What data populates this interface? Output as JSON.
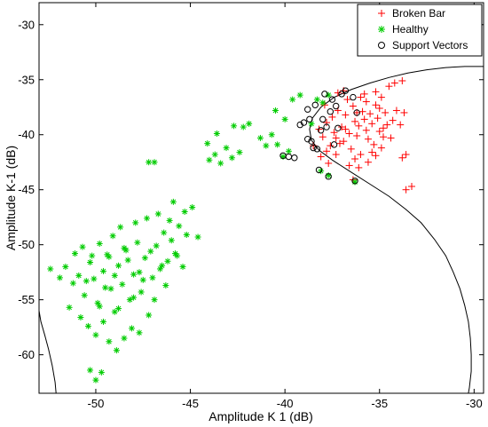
{
  "chart_data": {
    "type": "scatter",
    "title": "",
    "xlabel": "Amplitude K 1 (dB)",
    "ylabel": "Amplitude K-1 (dB)",
    "xlim": [
      -53,
      -29.5
    ],
    "ylim": [
      -63.5,
      -28
    ],
    "xticks": [
      -50,
      -45,
      -40,
      -35,
      -30
    ],
    "yticks": [
      -30,
      -35,
      -40,
      -45,
      -50,
      -55,
      -60
    ],
    "xtick_labels": [
      "-50",
      "-45",
      "-40",
      "-35",
      "-30"
    ],
    "ytick_labels": [
      "-30",
      "-35",
      "-40",
      "-45",
      "-50",
      "-55",
      "-60"
    ],
    "grid": false,
    "legend": {
      "position": "top-right",
      "entries": [
        "Broken Bar",
        "Healthy",
        "Support Vectors"
      ]
    },
    "series": [
      {
        "name": "Broken Bar",
        "marker": "plus",
        "color": "#ff0000",
        "points": [
          [
            -38.2,
            -39.5
          ],
          [
            -38.0,
            -40.2
          ],
          [
            -37.8,
            -38.9
          ],
          [
            -37.6,
            -41.0
          ],
          [
            -37.4,
            -39.8
          ],
          [
            -37.2,
            -37.8
          ],
          [
            -37.0,
            -39.3
          ],
          [
            -36.9,
            -40.6
          ],
          [
            -36.8,
            -38.2
          ],
          [
            -36.6,
            -39.9
          ],
          [
            -36.5,
            -41.3
          ],
          [
            -36.4,
            -37.4
          ],
          [
            -36.3,
            -38.8
          ],
          [
            -36.2,
            -40.1
          ],
          [
            -36.1,
            -39.2
          ],
          [
            -36.0,
            -41.8
          ],
          [
            -35.9,
            -37.9
          ],
          [
            -35.8,
            -38.6
          ],
          [
            -35.7,
            -39.6
          ],
          [
            -35.6,
            -40.4
          ],
          [
            -35.5,
            -38.1
          ],
          [
            -35.4,
            -39.0
          ],
          [
            -35.3,
            -40.9
          ],
          [
            -35.2,
            -37.3
          ],
          [
            -35.1,
            -38.5
          ],
          [
            -35.0,
            -39.7
          ],
          [
            -34.9,
            -36.6
          ],
          [
            -34.8,
            -40.2
          ],
          [
            -34.7,
            -38.0
          ],
          [
            -34.6,
            -39.1
          ],
          [
            -37.9,
            -37.3
          ],
          [
            -37.5,
            -38.4
          ],
          [
            -37.1,
            -40.8
          ],
          [
            -36.7,
            -36.8
          ],
          [
            -36.3,
            -42.2
          ],
          [
            -35.8,
            -36.3
          ],
          [
            -35.4,
            -41.6
          ],
          [
            -35.0,
            -37.6
          ],
          [
            -34.5,
            -35.6
          ],
          [
            -34.2,
            -35.3
          ],
          [
            -33.8,
            -35.1
          ],
          [
            -34.1,
            -37.8
          ],
          [
            -33.7,
            -38.0
          ],
          [
            -33.9,
            -39.1
          ],
          [
            -33.6,
            -41.8
          ],
          [
            -33.8,
            -42.1
          ],
          [
            -33.3,
            -44.7
          ],
          [
            -33.6,
            -45.0
          ],
          [
            -36.4,
            -44.1
          ],
          [
            -37.2,
            -36.2
          ],
          [
            -36.9,
            -36.0
          ],
          [
            -38.5,
            -41.0
          ],
          [
            -38.1,
            -42.0
          ],
          [
            -37.7,
            -42.6
          ],
          [
            -37.3,
            -41.8
          ],
          [
            -36.6,
            -42.8
          ],
          [
            -36.1,
            -43.0
          ],
          [
            -35.6,
            -42.5
          ],
          [
            -35.2,
            -41.9
          ],
          [
            -34.9,
            -41.2
          ],
          [
            -34.4,
            -40.3
          ],
          [
            -34.3,
            -38.7
          ],
          [
            -34.8,
            -39.4
          ],
          [
            -35.7,
            -37.0
          ],
          [
            -36.2,
            -38.0
          ],
          [
            -36.8,
            -39.5
          ],
          [
            -37.3,
            -40.3
          ],
          [
            -37.8,
            -41.5
          ],
          [
            -36.0,
            -36.6
          ],
          [
            -35.2,
            -36.1
          ]
        ]
      },
      {
        "name": "Healthy",
        "marker": "star",
        "color": "#00cc00",
        "points": [
          [
            -51.6,
            -52.0
          ],
          [
            -51.2,
            -53.5
          ],
          [
            -50.9,
            -52.8
          ],
          [
            -50.6,
            -54.6
          ],
          [
            -50.3,
            -51.6
          ],
          [
            -50.1,
            -53.1
          ],
          [
            -49.9,
            -55.3
          ],
          [
            -49.6,
            -52.4
          ],
          [
            -49.4,
            -50.9
          ],
          [
            -49.2,
            -54.0
          ],
          [
            -49.0,
            -56.1
          ],
          [
            -48.8,
            -51.9
          ],
          [
            -48.6,
            -53.6
          ],
          [
            -48.4,
            -50.5
          ],
          [
            -48.2,
            -55.0
          ],
          [
            -48.0,
            -52.7
          ],
          [
            -47.8,
            -49.8
          ],
          [
            -47.6,
            -54.3
          ],
          [
            -47.4,
            -51.2
          ],
          [
            -47.2,
            -56.4
          ],
          [
            -47.0,
            -53.0
          ],
          [
            -46.8,
            -50.1
          ],
          [
            -46.6,
            -52.2
          ],
          [
            -46.4,
            -48.9
          ],
          [
            -46.2,
            -51.5
          ],
          [
            -46.0,
            -49.6
          ],
          [
            -45.8,
            -50.8
          ],
          [
            -45.6,
            -48.3
          ],
          [
            -45.4,
            -52.0
          ],
          [
            -45.2,
            -49.1
          ],
          [
            -51.4,
            -55.7
          ],
          [
            -50.8,
            -56.6
          ],
          [
            -50.4,
            -57.4
          ],
          [
            -50.0,
            -58.2
          ],
          [
            -49.6,
            -57.0
          ],
          [
            -49.3,
            -58.8
          ],
          [
            -48.9,
            -59.6
          ],
          [
            -48.5,
            -58.5
          ],
          [
            -48.1,
            -57.6
          ],
          [
            -47.7,
            -58.0
          ],
          [
            -50.3,
            -61.4
          ],
          [
            -50.0,
            -62.3
          ],
          [
            -49.7,
            -61.6
          ],
          [
            -52.4,
            -52.2
          ],
          [
            -51.9,
            -53.0
          ],
          [
            -51.1,
            -50.8
          ],
          [
            -50.7,
            -50.2
          ],
          [
            -49.8,
            -49.9
          ],
          [
            -49.1,
            -49.2
          ],
          [
            -48.7,
            -48.4
          ],
          [
            -47.9,
            -48.0
          ],
          [
            -47.3,
            -47.6
          ],
          [
            -46.7,
            -47.2
          ],
          [
            -46.1,
            -47.8
          ],
          [
            -45.3,
            -47.0
          ],
          [
            -44.9,
            -46.6
          ],
          [
            -45.9,
            -46.1
          ],
          [
            -44.6,
            -49.3
          ],
          [
            -47.2,
            -42.5
          ],
          [
            -46.9,
            -42.5
          ],
          [
            -44.0,
            -42.3
          ],
          [
            -43.7,
            -41.8
          ],
          [
            -43.4,
            -42.6
          ],
          [
            -43.1,
            -41.2
          ],
          [
            -42.8,
            -42.1
          ],
          [
            -42.4,
            -41.6
          ],
          [
            -44.1,
            -40.8
          ],
          [
            -42.2,
            -39.3
          ],
          [
            -41.9,
            -39.0
          ],
          [
            -41.3,
            -40.3
          ],
          [
            -41.0,
            -41.0
          ],
          [
            -40.7,
            -40.0
          ],
          [
            -40.4,
            -40.9
          ],
          [
            -40.1,
            -42.0
          ],
          [
            -39.8,
            -41.5
          ],
          [
            -40.5,
            -37.8
          ],
          [
            -40.0,
            -38.6
          ],
          [
            -39.6,
            -36.8
          ],
          [
            -39.2,
            -36.4
          ],
          [
            -38.6,
            -39.0
          ],
          [
            -38.3,
            -36.8
          ],
          [
            -38.0,
            -37.1
          ],
          [
            -37.7,
            -36.4
          ],
          [
            -38.1,
            -43.3
          ],
          [
            -37.7,
            -43.7
          ],
          [
            -36.3,
            -44.3
          ],
          [
            -43.6,
            -39.9
          ],
          [
            -42.7,
            -39.2
          ],
          [
            -49.8,
            -55.6
          ],
          [
            -49.0,
            -52.8
          ],
          [
            -48.3,
            -51.4
          ],
          [
            -47.5,
            -53.2
          ],
          [
            -46.9,
            -55.0
          ],
          [
            -46.3,
            -53.7
          ],
          [
            -45.7,
            -51.0
          ],
          [
            -47.1,
            -50.6
          ],
          [
            -48.0,
            -54.8
          ],
          [
            -48.8,
            -55.8
          ],
          [
            -49.5,
            -53.9
          ],
          [
            -50.5,
            -53.3
          ],
          [
            -46.5,
            -51.9
          ],
          [
            -47.7,
            -52.5
          ],
          [
            -48.5,
            -50.3
          ],
          [
            -49.3,
            -51.1
          ],
          [
            -50.2,
            -51.0
          ]
        ]
      },
      {
        "name": "Support Vectors",
        "marker": "circle",
        "color": "#000000",
        "points": [
          [
            -39.2,
            -39.1
          ],
          [
            -39.0,
            -38.9
          ],
          [
            -38.8,
            -40.4
          ],
          [
            -38.6,
            -40.6
          ],
          [
            -38.5,
            -41.2
          ],
          [
            -38.3,
            -41.3
          ],
          [
            -38.8,
            -37.7
          ],
          [
            -38.4,
            -37.3
          ],
          [
            -38.0,
            -38.6
          ],
          [
            -37.8,
            -39.3
          ],
          [
            -37.6,
            -37.9
          ],
          [
            -37.3,
            -37.4
          ],
          [
            -37.0,
            -36.3
          ],
          [
            -36.8,
            -36.0
          ],
          [
            -36.4,
            -36.6
          ],
          [
            -36.2,
            -38.0
          ],
          [
            -40.1,
            -41.9
          ],
          [
            -39.8,
            -42.0
          ],
          [
            -39.5,
            -42.1
          ],
          [
            -38.2,
            -43.2
          ],
          [
            -37.7,
            -43.8
          ],
          [
            -36.3,
            -44.2
          ],
          [
            -37.9,
            -36.3
          ],
          [
            -38.1,
            -39.6
          ],
          [
            -37.5,
            -36.8
          ],
          [
            -37.2,
            -39.4
          ],
          [
            -38.7,
            -38.6
          ],
          [
            -37.4,
            -40.9
          ]
        ]
      }
    ],
    "decision_boundary": {
      "color": "#000000",
      "points": [
        [
          -29.5,
          -33.8
        ],
        [
          -30.5,
          -33.8
        ],
        [
          -31.5,
          -33.9
        ],
        [
          -32.5,
          -34.1
        ],
        [
          -33.5,
          -34.4
        ],
        [
          -34.5,
          -34.8
        ],
        [
          -35.5,
          -35.3
        ],
        [
          -36.5,
          -35.9
        ],
        [
          -37.4,
          -36.6
        ],
        [
          -38.1,
          -37.5
        ],
        [
          -38.55,
          -38.5
        ],
        [
          -38.7,
          -39.5
        ],
        [
          -38.6,
          -40.5
        ],
        [
          -38.2,
          -41.4
        ],
        [
          -37.5,
          -42.3
        ],
        [
          -36.6,
          -43.3
        ],
        [
          -35.5,
          -44.5
        ],
        [
          -34.5,
          -45.6
        ],
        [
          -33.6,
          -46.8
        ],
        [
          -32.8,
          -48.0
        ],
        [
          -32.1,
          -49.5
        ],
        [
          -31.5,
          -51.0
        ],
        [
          -31.1,
          -52.5
        ],
        [
          -30.75,
          -54.0
        ],
        [
          -30.5,
          -55.5
        ],
        [
          -30.3,
          -57.0
        ],
        [
          -30.2,
          -58.5
        ],
        [
          -30.15,
          -60.0
        ],
        [
          -30.15,
          -61.5
        ],
        [
          -30.25,
          -63.0
        ],
        [
          -30.3,
          -63.5
        ]
      ],
      "left_branch": [
        [
          -53.0,
          -56.0
        ],
        [
          -52.9,
          -57.0
        ],
        [
          -52.7,
          -58.2
        ],
        [
          -52.5,
          -59.5
        ],
        [
          -52.3,
          -61.0
        ],
        [
          -52.15,
          -62.5
        ],
        [
          -52.1,
          -63.5
        ]
      ]
    }
  }
}
